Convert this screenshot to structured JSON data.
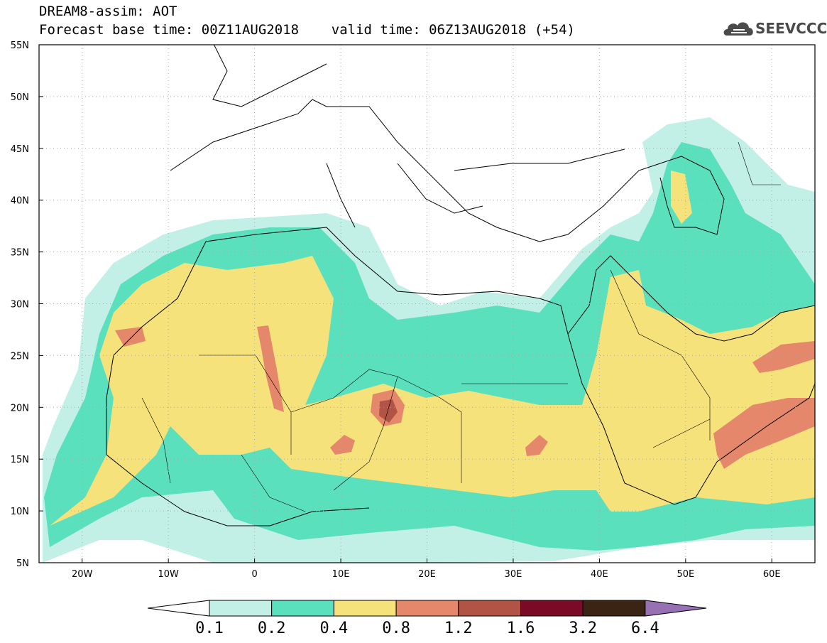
{
  "header": {
    "model_line": "DREAM8-assim: AOT",
    "forecast_line": "Forecast base time: 00Z11AUG2018    valid time: 06Z13AUG2018 (+54)"
  },
  "logo": {
    "text": "SEEVCCC",
    "icon": "cloud-icon",
    "color": "#4a4a4a"
  },
  "map": {
    "lat_ticks": [
      "55N",
      "50N",
      "45N",
      "40N",
      "35N",
      "30N",
      "25N",
      "20N",
      "15N",
      "10N",
      "5N"
    ],
    "lon_ticks": [
      "20W",
      "10W",
      "0",
      "10E",
      "20E",
      "30E",
      "40E",
      "50E",
      "60E"
    ]
  },
  "colorbar": {
    "labels": [
      "0.1",
      "0.2",
      "0.4",
      "0.8",
      "1.2",
      "1.6",
      "3.2",
      "6.4"
    ],
    "colors": [
      "#ffffff",
      "#c2efe6",
      "#5be0be",
      "#f5e27a",
      "#e5876a",
      "#b25445",
      "#7a0a25",
      "#3b2413",
      "#9870b4"
    ]
  }
}
